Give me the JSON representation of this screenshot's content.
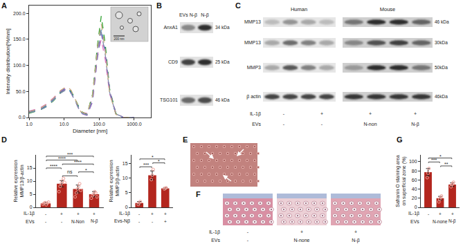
{
  "panel_labels": [
    "A",
    "B",
    "C",
    "D",
    "E",
    "F",
    "G"
  ],
  "chart_data": [
    {
      "type": "line",
      "x": [
        1,
        2,
        3,
        5,
        8,
        12,
        16,
        22,
        30,
        45,
        65,
        90,
        115,
        150,
        200,
        300,
        500,
        1000
      ],
      "series": [
        {
          "color": "#e377c2",
          "line_style": "dash",
          "values": [
            12,
            18,
            25,
            38,
            52,
            58,
            50,
            30,
            10,
            8,
            40,
            120,
            150,
            110,
            45,
            8,
            0,
            0
          ]
        },
        {
          "color": "#2ca02c",
          "line_style": "dash",
          "values": [
            8,
            14,
            20,
            32,
            48,
            56,
            50,
            32,
            12,
            6,
            45,
            140,
            195,
            140,
            55,
            8,
            0,
            0
          ]
        },
        {
          "color": "#1f77b4",
          "line_style": "dash",
          "values": [
            10,
            15,
            22,
            35,
            50,
            57,
            48,
            30,
            10,
            5,
            35,
            130,
            170,
            130,
            50,
            6,
            0,
            0
          ]
        },
        {
          "color": "#9467bd",
          "line_style": "dash",
          "values": [
            12,
            16,
            24,
            36,
            50,
            55,
            46,
            28,
            8,
            4,
            30,
            115,
            160,
            125,
            52,
            8,
            0,
            0
          ]
        },
        {
          "color": "#7f8cab",
          "line_style": "dash",
          "values": [
            9,
            14,
            20,
            33,
            47,
            54,
            47,
            28,
            9,
            5,
            38,
            125,
            165,
            120,
            48,
            7,
            0,
            0
          ]
        },
        {
          "color": "#c8a97e",
          "line_style": "dash",
          "values": [
            11,
            17,
            24,
            37,
            52,
            60,
            52,
            31,
            11,
            7,
            42,
            135,
            180,
            128,
            46,
            6,
            0,
            0
          ]
        }
      ],
      "log": "x",
      "xlim": [
        1,
        3000
      ],
      "ylim": [
        0,
        215
      ],
      "xticks": [
        {
          "value": 1,
          "label": "1.0"
        },
        {
          "value": 10,
          "label": "10.0"
        },
        {
          "value": 100,
          "label": "100.0"
        },
        {
          "value": 1000,
          "label": "1000.0"
        }
      ],
      "yticks": [
        {
          "value": 0,
          "label": "0.0"
        },
        {
          "value": 50,
          "label": "50.0"
        },
        {
          "value": 100,
          "label": "100.0"
        },
        {
          "value": 150,
          "label": "150.0"
        },
        {
          "value": 200,
          "label": "200.0"
        }
      ],
      "xlabel": "Diameter [nm]",
      "ylabel": "Intensity distribution[%/nm]",
      "grid": false
    },
    {
      "type": "bar",
      "categories": [
        null,
        null,
        null,
        null
      ],
      "values": [
        1.5,
        9,
        7,
        5
      ],
      "error": [
        0.4,
        1.2,
        1.5,
        1.0
      ],
      "points": [
        [
          1.2,
          1.5,
          1.8,
          1.0,
          1.6,
          2.0
        ],
        [
          6,
          8,
          9,
          10,
          11,
          9.5
        ],
        [
          4,
          5.5,
          7,
          8,
          9,
          6.5
        ],
        [
          3.5,
          4.5,
          5,
          6,
          5.5,
          4
        ]
      ],
      "color": "#b3261e",
      "ylim": [
        0,
        20
      ],
      "yticks": [
        0,
        5,
        10,
        15
      ],
      "ylabel": [
        "Relative expression",
        "MMP13/β-actin"
      ],
      "tick_labels": "y",
      "grid": false,
      "significance": [
        {
          "from": 1,
          "to": 2,
          "label": "ns"
        },
        {
          "from": 2,
          "to": 3,
          "label": "*"
        },
        {
          "from": 0,
          "to": 1,
          "label": "****"
        },
        {
          "from": 1,
          "to": 3,
          "label": "****"
        },
        {
          "from": 0,
          "to": 2,
          "label": "****"
        },
        {
          "from": 0,
          "to": 3,
          "label": "***"
        }
      ],
      "x_table": [
        {
          "label": "IL-1β",
          "cells": [
            "-",
            "+",
            "+",
            "+"
          ]
        },
        {
          "label": "EVs",
          "cells": [
            "-",
            "-",
            "N-Non",
            "N-β"
          ]
        }
      ]
    },
    {
      "type": "bar",
      "categories": [
        null,
        null,
        null
      ],
      "values": [
        1.5,
        11,
        6.5
      ],
      "error": [
        0.5,
        1.5,
        0.3
      ],
      "points": [
        [
          1,
          1.5,
          2
        ],
        [
          9.5,
          11,
          13
        ],
        [
          6.3,
          6.5,
          6.7
        ]
      ],
      "color": "#b3261e",
      "ylim": [
        0,
        18
      ],
      "yticks": [
        0,
        5,
        10,
        15
      ],
      "ylabel": [
        "Relative expression",
        "MMP3/β-actin"
      ],
      "tick_labels": "y",
      "grid": false,
      "significance": [
        {
          "from": 0,
          "to": 1,
          "label": "***"
        },
        {
          "from": 1,
          "to": 2,
          "label": "*"
        },
        {
          "from": 0,
          "to": 2,
          "label": "*"
        }
      ],
      "x_table": [
        {
          "label": "IL-1β",
          "cells": [
            "-",
            "+",
            "+"
          ]
        },
        {
          "label": "Evs-Nβ",
          "cells": [
            "-",
            "-",
            "+"
          ]
        }
      ]
    },
    {
      "type": "bar",
      "categories": [
        null,
        null,
        null
      ],
      "values": [
        77,
        20,
        50
      ],
      "error": [
        8,
        4,
        4
      ],
      "points": [
        [
          65,
          75,
          85
        ],
        [
          12,
          18,
          22,
          25
        ],
        [
          45,
          50,
          52,
          55
        ]
      ],
      "color": "#b3261e",
      "ylim": [
        0,
        115
      ],
      "yticks": [
        0,
        20,
        40,
        60,
        80,
        100
      ],
      "ylabel": [
        "Safranin O staining area",
        "on superficial zone (%)"
      ],
      "tick_labels": "y",
      "grid": false,
      "significance": [
        {
          "from": 1,
          "to": 2,
          "label": "**"
        },
        {
          "from": 0,
          "to": 1,
          "label": "***"
        },
        {
          "from": 0,
          "to": 2,
          "label": "*"
        }
      ],
      "x_table": [
        {
          "label": "IL-1β",
          "cells": [
            "-",
            "+",
            "+"
          ]
        },
        {
          "label": "EVs",
          "cells": [
            null,
            "N-none",
            "N-β"
          ]
        }
      ]
    }
  ],
  "panel_A_inset": {
    "scale_bar": "200 nm"
  },
  "panel_B": {
    "columns": [
      "EVs N-β",
      "N-β"
    ],
    "rows": [
      {
        "protein": "AnxA1",
        "size": "34 kDa"
      },
      {
        "protein": "CD9",
        "size": "25 kDa"
      },
      {
        "protein": "TSG101",
        "size": "46 kDa"
      }
    ]
  },
  "panel_C": {
    "groups": [
      "Human",
      "Mouse"
    ],
    "rows": [
      {
        "protein": "MMP13",
        "size": "46 kDa"
      },
      {
        "protein": "MMP13",
        "size": "30kDa"
      },
      {
        "protein": "MMP3",
        "size": "50kDa"
      },
      {
        "protein": "β actin",
        "size": "46kDa"
      }
    ],
    "conditions": [
      {
        "label": "IL-1β",
        "cells": [
          "-",
          "+",
          "+",
          "+"
        ]
      },
      {
        "label": "EVs",
        "cells": [
          "-",
          "-",
          "N-non",
          "N-β"
        ]
      }
    ]
  },
  "panel_F": {
    "conditions": [
      {
        "label": "IL-1β",
        "cells": [
          "-",
          "+",
          "+"
        ]
      },
      {
        "label": "EVs",
        "cells": [
          "-",
          "N-none",
          "N-β"
        ]
      }
    ]
  }
}
